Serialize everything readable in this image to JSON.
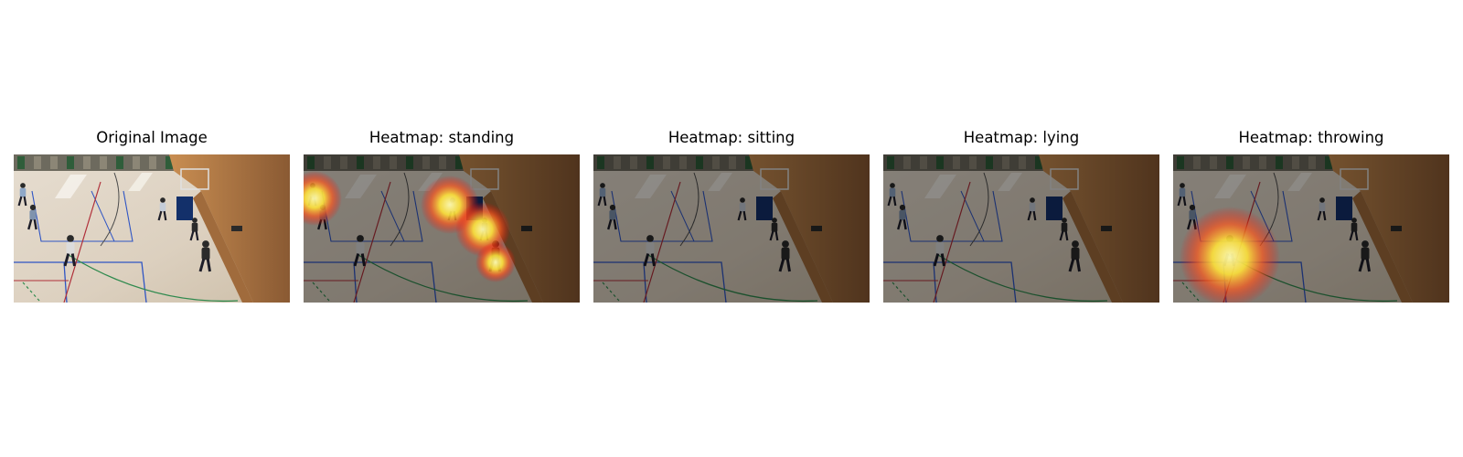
{
  "figure": {
    "panels": [
      {
        "title": "Original Image",
        "dim": false,
        "heatmap": null
      },
      {
        "title": "Heatmap: standing",
        "dim": true,
        "heatmap": "standing"
      },
      {
        "title": "Heatmap: sitting",
        "dim": true,
        "heatmap": null
      },
      {
        "title": "Heatmap: lying",
        "dim": true,
        "heatmap": null
      },
      {
        "title": "Heatmap: throwing",
        "dim": true,
        "heatmap": "throwing"
      }
    ]
  }
}
